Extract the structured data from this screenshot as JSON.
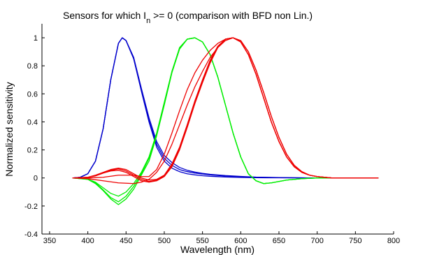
{
  "chart_data": {
    "type": "line",
    "title": {
      "before_sub": "Sensors for which I",
      "subscript": "n",
      "after_sub": " >= 0 (comparison with BFD non Lin.)"
    },
    "xlabel": "Wavelength (nm)",
    "ylabel": "Normalized sensitivity",
    "xlim": [
      340,
      800
    ],
    "ylim": [
      -0.4,
      1.1
    ],
    "xticks": [
      350,
      400,
      450,
      500,
      550,
      600,
      650,
      700,
      750,
      800
    ],
    "yticks": [
      -0.4,
      -0.2,
      0,
      0.2,
      0.4,
      0.6,
      0.8,
      1
    ],
    "grid": false,
    "legend": "none",
    "colors": {
      "blue": "#0000cc",
      "green": "#00ee00",
      "red": "#ee0000"
    },
    "series": [
      {
        "color": "blue",
        "x": [
          380,
          390,
          400,
          410,
          420,
          430,
          440,
          445,
          450,
          460,
          470,
          480,
          490,
          500,
          510,
          520,
          530,
          540,
          550,
          560,
          580,
          600,
          620,
          650,
          700,
          780
        ],
        "y": [
          0,
          0.005,
          0.03,
          0.12,
          0.35,
          0.7,
          0.96,
          1.0,
          0.98,
          0.85,
          0.62,
          0.4,
          0.22,
          0.12,
          0.07,
          0.045,
          0.03,
          0.022,
          0.016,
          0.012,
          0.007,
          0.004,
          0.002,
          0.001,
          0,
          0
        ]
      },
      {
        "color": "blue",
        "x": [
          380,
          390,
          400,
          410,
          420,
          430,
          440,
          445,
          450,
          460,
          470,
          480,
          490,
          500,
          510,
          520,
          530,
          540,
          550,
          560,
          580,
          600,
          620,
          650,
          700,
          780
        ],
        "y": [
          0,
          0.005,
          0.03,
          0.12,
          0.35,
          0.7,
          0.96,
          1.0,
          0.98,
          0.85,
          0.63,
          0.41,
          0.24,
          0.14,
          0.09,
          0.06,
          0.045,
          0.035,
          0.028,
          0.022,
          0.014,
          0.009,
          0.005,
          0.002,
          0,
          0
        ]
      },
      {
        "color": "blue",
        "x": [
          380,
          390,
          400,
          410,
          420,
          430,
          440,
          445,
          450,
          460,
          470,
          480,
          490,
          500,
          510,
          520,
          530,
          540,
          550,
          560,
          580,
          600,
          620,
          650,
          700,
          780
        ],
        "y": [
          0,
          0.005,
          0.03,
          0.12,
          0.35,
          0.7,
          0.96,
          1.0,
          0.98,
          0.86,
          0.64,
          0.43,
          0.26,
          0.16,
          0.11,
          0.075,
          0.055,
          0.042,
          0.033,
          0.026,
          0.017,
          0.011,
          0.006,
          0.003,
          0,
          0
        ]
      },
      {
        "color": "green",
        "x": [
          380,
          400,
          410,
          420,
          430,
          440,
          450,
          460,
          470,
          480,
          490,
          500,
          510,
          520,
          530,
          540,
          550,
          560,
          570,
          580,
          590,
          600,
          610,
          620,
          630,
          640,
          650,
          660,
          680,
          700,
          780
        ],
        "y": [
          0,
          -0.01,
          -0.04,
          -0.09,
          -0.15,
          -0.19,
          -0.15,
          -0.08,
          0.02,
          0.12,
          0.3,
          0.52,
          0.75,
          0.92,
          0.99,
          1.0,
          0.97,
          0.88,
          0.72,
          0.52,
          0.32,
          0.15,
          0.03,
          -0.02,
          -0.04,
          -0.035,
          -0.025,
          -0.015,
          -0.005,
          0,
          0
        ]
      },
      {
        "color": "green",
        "x": [
          380,
          400,
          410,
          420,
          430,
          440,
          450,
          460,
          470,
          480,
          490,
          500,
          510,
          520,
          530,
          540,
          550,
          560,
          570,
          580,
          590,
          600,
          610,
          620,
          630,
          640,
          650,
          660,
          680,
          700,
          780
        ],
        "y": [
          0,
          -0.01,
          -0.035,
          -0.085,
          -0.14,
          -0.17,
          -0.13,
          -0.06,
          0.03,
          0.14,
          0.31,
          0.53,
          0.76,
          0.92,
          0.99,
          1.0,
          0.97,
          0.88,
          0.72,
          0.52,
          0.32,
          0.15,
          0.03,
          -0.02,
          -0.04,
          -0.035,
          -0.025,
          -0.015,
          -0.005,
          0,
          0
        ]
      },
      {
        "color": "green",
        "x": [
          380,
          400,
          410,
          420,
          430,
          440,
          450,
          460,
          470,
          480,
          490,
          500,
          510,
          520,
          530,
          540,
          550,
          560,
          570,
          580,
          590,
          600,
          610,
          620,
          630,
          640,
          650,
          660,
          680,
          700,
          780
        ],
        "y": [
          0,
          -0.008,
          -0.03,
          -0.07,
          -0.11,
          -0.13,
          -0.1,
          -0.04,
          0.04,
          0.15,
          0.32,
          0.54,
          0.76,
          0.93,
          0.99,
          1.0,
          0.97,
          0.88,
          0.72,
          0.52,
          0.32,
          0.15,
          0.03,
          -0.02,
          -0.04,
          -0.035,
          -0.025,
          -0.015,
          -0.005,
          0,
          0
        ]
      },
      {
        "color": "red",
        "x": [
          380,
          400,
          410,
          420,
          430,
          440,
          450,
          460,
          470,
          480,
          490,
          500,
          510,
          520,
          530,
          540,
          550,
          560,
          570,
          580,
          590,
          600,
          610,
          620,
          630,
          640,
          650,
          660,
          670,
          680,
          690,
          700,
          720,
          780
        ],
        "y": [
          0,
          0.005,
          0.015,
          0.035,
          0.05,
          0.055,
          0.04,
          0.01,
          -0.02,
          -0.03,
          -0.02,
          0.01,
          0.08,
          0.2,
          0.36,
          0.53,
          0.68,
          0.82,
          0.93,
          0.99,
          1.0,
          0.97,
          0.88,
          0.74,
          0.57,
          0.4,
          0.26,
          0.15,
          0.08,
          0.04,
          0.02,
          0.01,
          0,
          0
        ]
      },
      {
        "color": "red",
        "x": [
          380,
          400,
          410,
          420,
          430,
          440,
          450,
          460,
          470,
          480,
          490,
          500,
          510,
          520,
          530,
          540,
          550,
          560,
          570,
          580,
          590,
          600,
          610,
          620,
          630,
          640,
          650,
          660,
          670,
          680,
          690,
          700,
          720,
          780
        ],
        "y": [
          0,
          0.005,
          0.015,
          0.035,
          0.055,
          0.065,
          0.05,
          0.02,
          -0.01,
          -0.025,
          -0.015,
          0.015,
          0.09,
          0.21,
          0.37,
          0.54,
          0.69,
          0.83,
          0.93,
          0.99,
          1.0,
          0.97,
          0.88,
          0.74,
          0.57,
          0.4,
          0.26,
          0.15,
          0.08,
          0.04,
          0.02,
          0.01,
          0,
          0
        ]
      },
      {
        "color": "red",
        "x": [
          380,
          400,
          410,
          420,
          430,
          440,
          450,
          460,
          470,
          480,
          490,
          500,
          510,
          520,
          530,
          540,
          550,
          560,
          570,
          580,
          590,
          600,
          610,
          620,
          630,
          640,
          650,
          660,
          670,
          680,
          690,
          700,
          720,
          780
        ],
        "y": [
          0,
          0.005,
          0.02,
          0.04,
          0.06,
          0.07,
          0.06,
          0.03,
          0.0,
          -0.015,
          -0.01,
          0.02,
          0.1,
          0.22,
          0.38,
          0.55,
          0.7,
          0.84,
          0.94,
          0.99,
          1.0,
          0.97,
          0.88,
          0.74,
          0.57,
          0.4,
          0.26,
          0.15,
          0.08,
          0.04,
          0.02,
          0.01,
          0,
          0
        ]
      },
      {
        "color": "red",
        "x": [
          380,
          400,
          420,
          440,
          460,
          470,
          480,
          490,
          500,
          510,
          520,
          530,
          540,
          550,
          560,
          570,
          580,
          590,
          600,
          610,
          620,
          630,
          640,
          650,
          660,
          670,
          680,
          690,
          700,
          720,
          780
        ],
        "y": [
          0,
          -0.005,
          -0.02,
          -0.035,
          -0.04,
          -0.03,
          -0.01,
          0.04,
          0.12,
          0.24,
          0.38,
          0.52,
          0.65,
          0.76,
          0.86,
          0.93,
          0.98,
          1.0,
          0.98,
          0.9,
          0.77,
          0.61,
          0.44,
          0.29,
          0.17,
          0.09,
          0.045,
          0.02,
          0.01,
          0,
          0
        ]
      },
      {
        "color": "red",
        "x": [
          380,
          400,
          420,
          440,
          460,
          470,
          480,
          490,
          500,
          510,
          520,
          530,
          540,
          550,
          560,
          570,
          580,
          590,
          600,
          610,
          620,
          630,
          640,
          650,
          660,
          670,
          680,
          690,
          700,
          720,
          780
        ],
        "y": [
          0,
          0.0,
          0.005,
          0.02,
          0.02,
          0.01,
          0.01,
          0.06,
          0.17,
          0.32,
          0.48,
          0.63,
          0.75,
          0.84,
          0.91,
          0.96,
          0.99,
          1.0,
          0.98,
          0.9,
          0.77,
          0.61,
          0.44,
          0.29,
          0.17,
          0.09,
          0.045,
          0.02,
          0.01,
          0,
          0
        ]
      }
    ]
  }
}
